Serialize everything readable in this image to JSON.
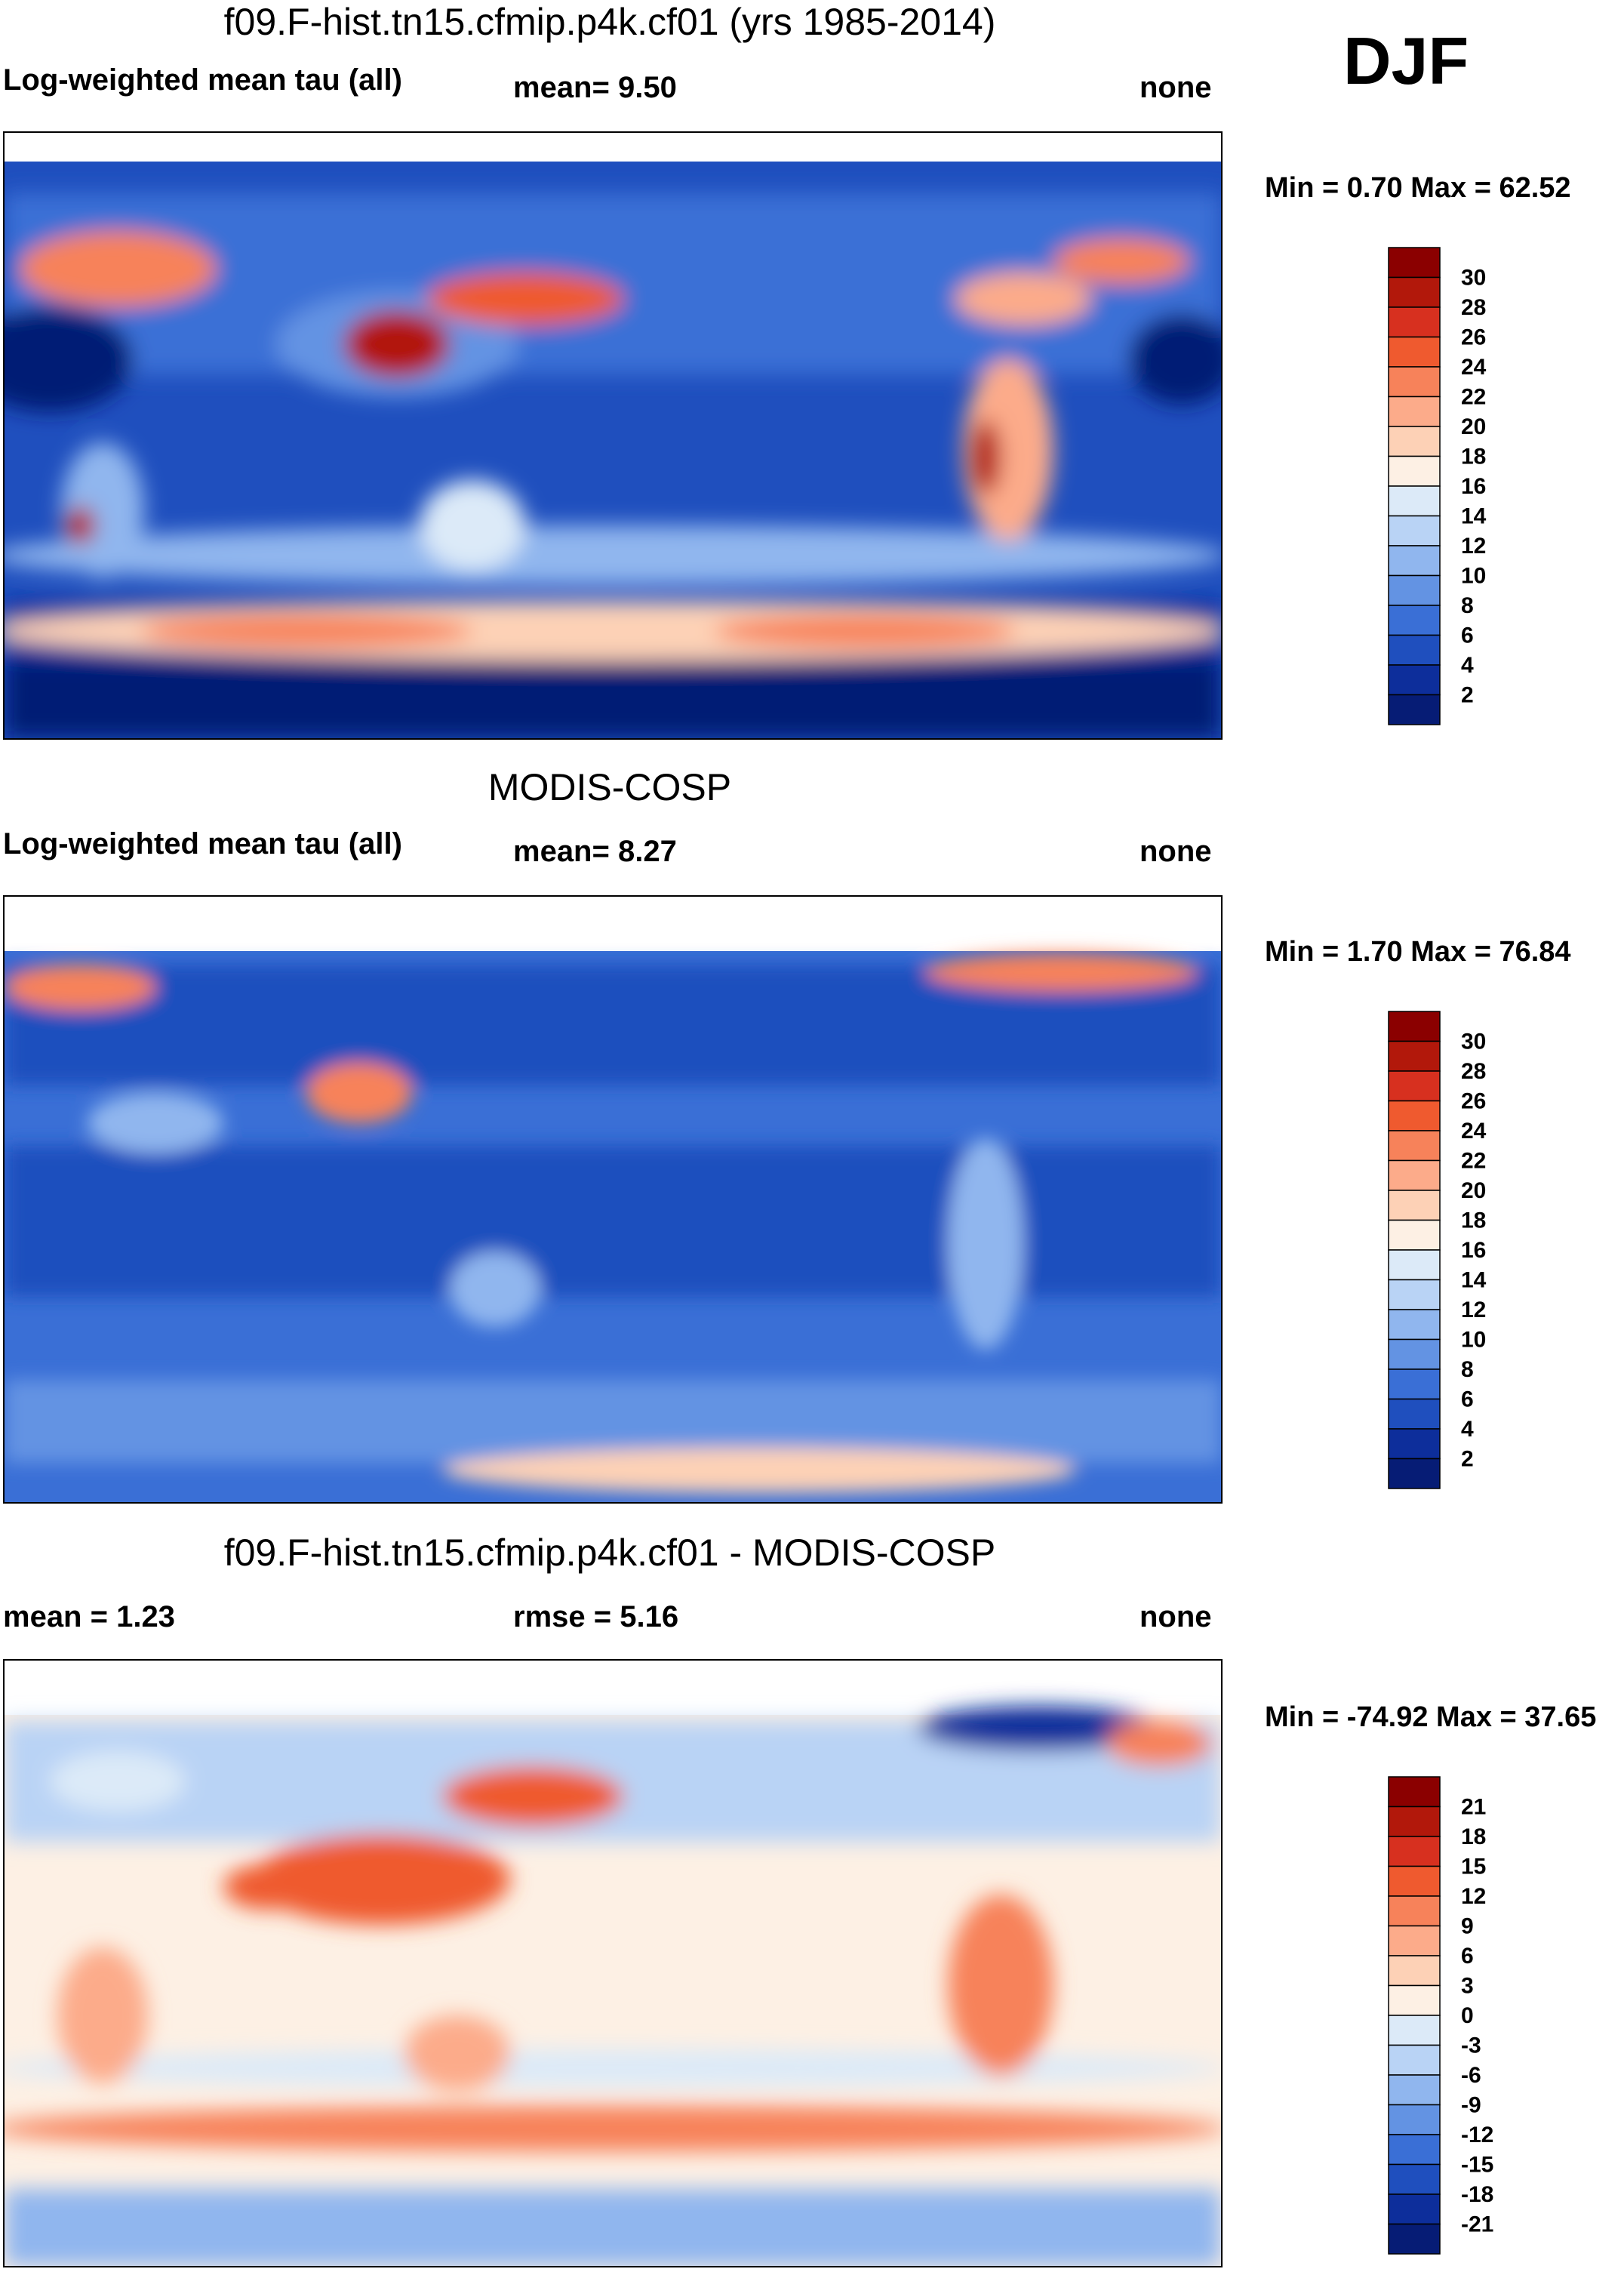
{
  "season": "DJF",
  "panels": [
    {
      "id": "model",
      "title": "f09.F-hist.tn15.cfmip.p4k.cf01 (yrs 1985-2014)",
      "left_label": "Log-weighted mean tau (all)",
      "center_label": "mean=   9.50",
      "right_label": "none",
      "minmax": "Min =   0.70 Max =  62.52",
      "colorbar_ticks": [
        "30",
        "28",
        "26",
        "24",
        "22",
        "20",
        "18",
        "16",
        "14",
        "12",
        "10",
        "8",
        "6",
        "4",
        "2"
      ],
      "colorbar_colors": [
        "#8b0000",
        "#b2180b",
        "#d7301f",
        "#ef5a2f",
        "#f7825a",
        "#fcab8a",
        "#fdd1b6",
        "#fdf0e4",
        "#dceaf8",
        "#b9d3f5",
        "#90b6ee",
        "#6393e3",
        "#3a6fd6",
        "#1f4fbe",
        "#0d2e9b",
        "#061c75"
      ],
      "colorbar_min": 0,
      "colorbar_max": 32
    },
    {
      "id": "obs",
      "title": "MODIS-COSP",
      "left_label": "Log-weighted mean tau (all)",
      "center_label": "mean=   8.27",
      "right_label": "none",
      "minmax": "Min =   1.70 Max =  76.84",
      "colorbar_ticks": [
        "30",
        "28",
        "26",
        "24",
        "22",
        "20",
        "18",
        "16",
        "14",
        "12",
        "10",
        "8",
        "6",
        "4",
        "2"
      ],
      "colorbar_colors": [
        "#8b0000",
        "#b2180b",
        "#d7301f",
        "#ef5a2f",
        "#f7825a",
        "#fcab8a",
        "#fdd1b6",
        "#fdf0e4",
        "#dceaf8",
        "#b9d3f5",
        "#90b6ee",
        "#6393e3",
        "#3a6fd6",
        "#1f4fbe",
        "#0d2e9b",
        "#061c75"
      ],
      "colorbar_min": 0,
      "colorbar_max": 32
    },
    {
      "id": "diff",
      "title": "f09.F-hist.tn15.cfmip.p4k.cf01 - MODIS-COSP",
      "left_label": "mean =   1.23",
      "center_label": "rmse =   5.16",
      "right_label": "none",
      "minmax": "Min = -74.92 Max =  37.65",
      "colorbar_ticks": [
        "21",
        "18",
        "15",
        "12",
        "9",
        "6",
        "3",
        "0",
        "-3",
        "-6",
        "-9",
        "-12",
        "-15",
        "-18",
        "-21"
      ],
      "colorbar_colors": [
        "#8b0000",
        "#b2180b",
        "#d7301f",
        "#ef5a2f",
        "#f7825a",
        "#fcab8a",
        "#fdd1b6",
        "#fdf0e4",
        "#dceaf8",
        "#b9d3f5",
        "#90b6ee",
        "#6393e3",
        "#3a6fd6",
        "#1f4fbe",
        "#0d2e9b",
        "#061c75"
      ],
      "colorbar_min": -24,
      "colorbar_max": 24
    }
  ]
}
